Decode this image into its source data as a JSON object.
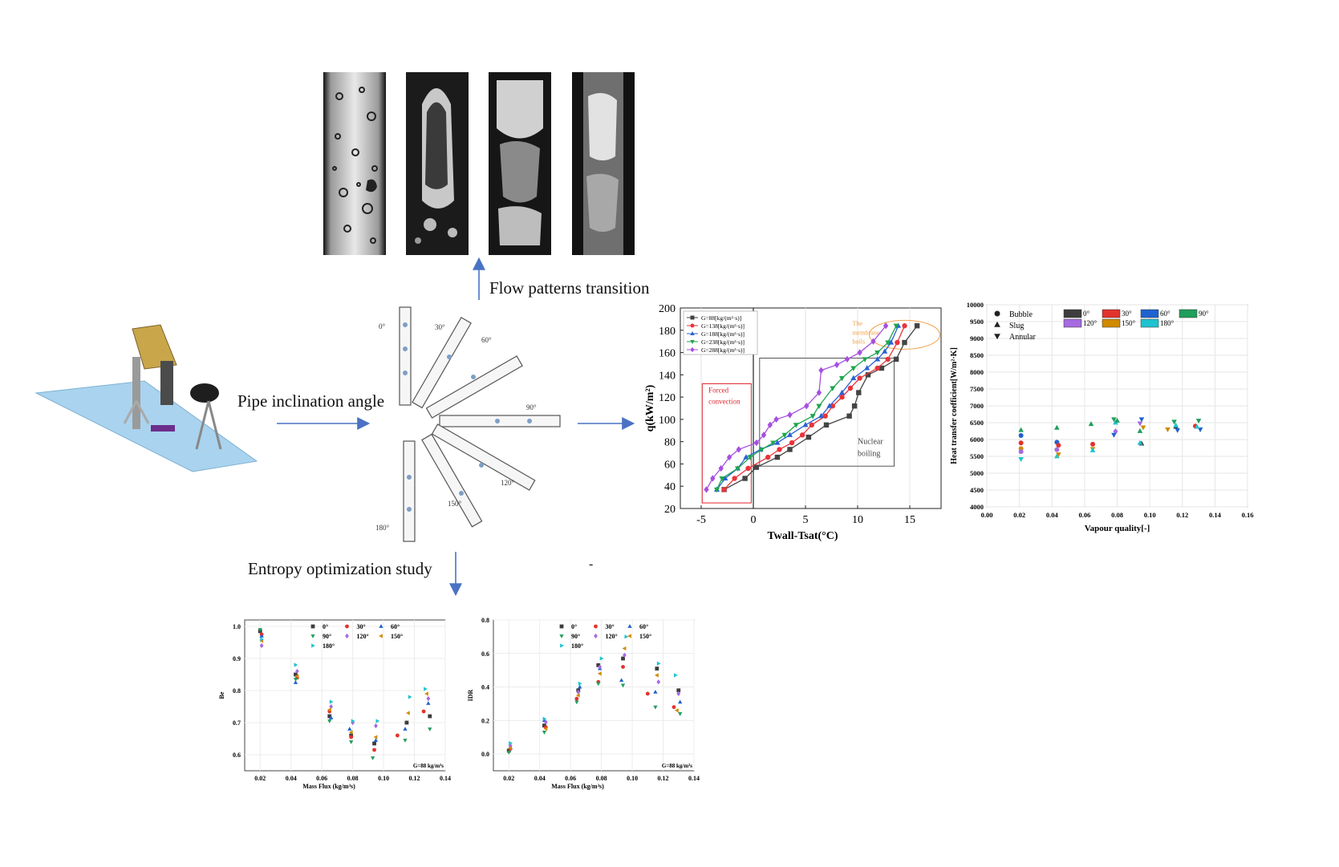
{
  "captions": {
    "flow_patterns": "Flow patterns  transition",
    "pipe_inclination": "Pipe inclination  angle",
    "entropy": "Entropy optimization study",
    "stray_dash": "-"
  },
  "angles": [
    "0°",
    "30°",
    "60°",
    "90°",
    "120°",
    "150°",
    "180°"
  ],
  "colors": {
    "arrow": "#4a72c4",
    "g88": "#444444",
    "g138": "#e8343a",
    "g188": "#2a62d6",
    "g238": "#1fa54f",
    "g288": "#a64fe0",
    "a0": "#3d3d3d",
    "a30": "#e2332c",
    "a60": "#1f62d0",
    "a90": "#1f9e5c",
    "a120": "#a66be0",
    "a150": "#d08a00",
    "a180": "#1fc3cf",
    "forced_box": "#e0242b",
    "membrane": "#f0a04b",
    "nucleate_box": "#555555"
  },
  "boiling_chart": {
    "chart_data": {
      "type": "line",
      "xlabel": "Twall-Tsat(°C)",
      "ylabel": "q(kW/m²)",
      "xlim": [
        -7,
        18
      ],
      "ylim": [
        20,
        200
      ],
      "xticks": [
        -5,
        0,
        5,
        10,
        15
      ],
      "yticks": [
        20,
        40,
        60,
        80,
        100,
        120,
        140,
        160,
        180,
        200
      ],
      "legend_position": "top-left",
      "series": [
        {
          "name": "G=88[kg/(m²·s)]",
          "marker": "square",
          "color": "#444444",
          "x": [
            -2.8,
            -0.8,
            0.3,
            2.3,
            3.5,
            5.3,
            7.0,
            9.2,
            9.7,
            10.1,
            11.0,
            12.3,
            13.7,
            14.5,
            15.7
          ],
          "y": [
            37,
            47,
            57,
            66,
            73,
            84,
            95,
            103,
            112,
            124,
            140,
            146,
            154,
            169,
            184
          ]
        },
        {
          "name": "G=138[kg/(m²·s)]",
          "marker": "circle",
          "color": "#e8343a",
          "x": [
            -2.8,
            -1.8,
            -0.5,
            1.4,
            2.5,
            3.7,
            4.7,
            5.6,
            6.9,
            7.6,
            8.5,
            9.3,
            10.2,
            11.9,
            12.9,
            13.8,
            14.5
          ],
          "y": [
            37,
            47,
            56,
            66,
            73,
            79,
            86,
            95,
            103,
            112,
            120,
            128,
            137,
            146,
            154,
            169,
            184
          ]
        },
        {
          "name": "G=188[kg/(m²·s)]",
          "marker": "triangle-up",
          "color": "#2a62d6",
          "x": [
            -3.5,
            -2.7,
            -1.5,
            -0.7,
            0.7,
            2.3,
            3.5,
            5.0,
            6.5,
            7.3,
            8.5,
            9.6,
            10.9,
            11.9,
            12.6,
            13.2,
            13.9
          ],
          "y": [
            37,
            47,
            56,
            66,
            73,
            79,
            86,
            95,
            103,
            112,
            124,
            137,
            146,
            154,
            161,
            169,
            184
          ]
        },
        {
          "name": "G=238[kg/(m²·s)]",
          "marker": "triangle-down",
          "color": "#1fa54f",
          "x": [
            -3.5,
            -3.0,
            -1.5,
            -0.3,
            0.8,
            1.9,
            3.0,
            4.1,
            5.7,
            6.3,
            7.6,
            8.5,
            9.6,
            10.7,
            11.9,
            12.9,
            13.7
          ],
          "y": [
            37,
            47,
            56,
            66,
            73,
            79,
            86,
            95,
            103,
            112,
            128,
            137,
            146,
            154,
            160,
            169,
            184
          ]
        },
        {
          "name": "G=288[kg/(m²·s)]",
          "marker": "diamond",
          "color": "#a64fe0",
          "x": [
            -4.5,
            -3.9,
            -3.1,
            -2.3,
            -1.4,
            0.3,
            1.0,
            1.6,
            2.2,
            3.5,
            5.1,
            6.3,
            6.5,
            8.0,
            9.0,
            10.2,
            11.5,
            12.7
          ],
          "y": [
            37,
            47,
            56,
            66,
            73,
            79,
            86,
            95,
            100,
            104,
            112,
            124,
            144,
            149,
            154,
            160,
            170,
            184
          ]
        }
      ],
      "annotations": [
        "Forced convection",
        "Nuclear boiling",
        "The membrane boils"
      ]
    },
    "annotations": {
      "forced_1": "Forced",
      "forced_2": "convection",
      "nuclear_1": "Nuclear",
      "nuclear_2": "boiling",
      "membrane_1": "The",
      "membrane_2": "membrane",
      "membrane_3": "boils"
    }
  },
  "htc_chart": {
    "chart_data": {
      "type": "scatter",
      "xlabel": "Vapour quality[-]",
      "ylabel": "Heat transfer coefficient[W/m²·K]",
      "xlim": [
        0.0,
        0.16
      ],
      "ylim": [
        4000,
        10000
      ],
      "xticks": [
        "0.00",
        "0.02",
        "0.04",
        "0.06",
        "0.08",
        "0.10",
        "0.12",
        "0.14",
        "0.16"
      ],
      "yticks": [
        "4000",
        "4500",
        "5000",
        "5500",
        "6000",
        "6500",
        "7000",
        "7500",
        "8000",
        "8500",
        "9000",
        "9500",
        "10000"
      ],
      "marker_legend": [
        "Bubble",
        "Slug",
        "Annular"
      ],
      "color_legend": [
        "0°",
        "30°",
        "60°",
        "90°",
        "120°",
        "150°",
        "180°"
      ],
      "points": [
        {
          "x": 0.021,
          "y": 6120,
          "c": "a60",
          "m": "circle"
        },
        {
          "x": 0.021,
          "y": 5900,
          "c": "a30",
          "m": "circle"
        },
        {
          "x": 0.021,
          "y": 5730,
          "c": "a150",
          "m": "circle"
        },
        {
          "x": 0.021,
          "y": 5640,
          "c": "a120",
          "m": "circle"
        },
        {
          "x": 0.021,
          "y": 6280,
          "c": "a90",
          "m": "tri-up"
        },
        {
          "x": 0.021,
          "y": 5420,
          "c": "a180",
          "m": "tri-down"
        },
        {
          "x": 0.043,
          "y": 5920,
          "c": "a60",
          "m": "circle"
        },
        {
          "x": 0.044,
          "y": 5830,
          "c": "a30",
          "m": "circle"
        },
        {
          "x": 0.043,
          "y": 5700,
          "c": "a120",
          "m": "circle"
        },
        {
          "x": 0.043,
          "y": 6350,
          "c": "a90",
          "m": "tri-up"
        },
        {
          "x": 0.043,
          "y": 5500,
          "c": "a180",
          "m": "tri-up"
        },
        {
          "x": 0.044,
          "y": 5560,
          "c": "a150",
          "m": "tri-down"
        },
        {
          "x": 0.064,
          "y": 6460,
          "c": "a90",
          "m": "tri-up"
        },
        {
          "x": 0.065,
          "y": 5860,
          "c": "a30",
          "m": "circle"
        },
        {
          "x": 0.065,
          "y": 5720,
          "c": "a150",
          "m": "tri-down"
        },
        {
          "x": 0.065,
          "y": 5680,
          "c": "a180",
          "m": "tri-up"
        },
        {
          "x": 0.078,
          "y": 6600,
          "c": "a90",
          "m": "tri-down"
        },
        {
          "x": 0.079,
          "y": 6500,
          "c": "a180",
          "m": "tri-up"
        },
        {
          "x": 0.08,
          "y": 6560,
          "c": "a90",
          "m": "tri-up"
        },
        {
          "x": 0.079,
          "y": 6240,
          "c": "a120",
          "m": "diamond"
        },
        {
          "x": 0.078,
          "y": 6140,
          "c": "a60",
          "m": "tri-down"
        },
        {
          "x": 0.095,
          "y": 6600,
          "c": "a60",
          "m": "tri-down"
        },
        {
          "x": 0.094,
          "y": 6480,
          "c": "a120",
          "m": "tri-down"
        },
        {
          "x": 0.096,
          "y": 6360,
          "c": "a150",
          "m": "tri-down"
        },
        {
          "x": 0.094,
          "y": 6250,
          "c": "a90",
          "m": "tri-up"
        },
        {
          "x": 0.095,
          "y": 5880,
          "c": "a0",
          "m": "tri-up"
        },
        {
          "x": 0.094,
          "y": 5900,
          "c": "a180",
          "m": "tri-up"
        },
        {
          "x": 0.111,
          "y": 6300,
          "c": "a150",
          "m": "tri-down"
        },
        {
          "x": 0.115,
          "y": 6530,
          "c": "a90",
          "m": "tri-down"
        },
        {
          "x": 0.116,
          "y": 6380,
          "c": "a0",
          "m": "tri-up"
        },
        {
          "x": 0.117,
          "y": 6280,
          "c": "a60",
          "m": "tri-down"
        },
        {
          "x": 0.116,
          "y": 6420,
          "c": "a180",
          "m": "tri-up"
        },
        {
          "x": 0.128,
          "y": 6400,
          "c": "a30",
          "m": "circle"
        },
        {
          "x": 0.13,
          "y": 6560,
          "c": "a90",
          "m": "tri-down"
        },
        {
          "x": 0.131,
          "y": 6300,
          "c": "a60",
          "m": "tri-down"
        },
        {
          "x": 0.129,
          "y": 6380,
          "c": "a180",
          "m": "tri-up"
        }
      ]
    }
  },
  "re_chart": {
    "chart_data": {
      "type": "scatter",
      "xlabel": "Mass Flux (kg/m³s)",
      "ylabel": "Be",
      "xlim": [
        0.01,
        0.14
      ],
      "ylim": [
        0.55,
        1.02
      ],
      "xticks": [
        "0.02",
        "0.04",
        "0.06",
        "0.08",
        "0.10",
        "0.12",
        "0.14"
      ],
      "yticks": [
        "0.6",
        "0.7",
        "0.8",
        "0.9",
        "1.0"
      ],
      "legend": [
        "0°",
        "30°",
        "60°",
        "90°",
        "120°",
        "150°",
        "180°"
      ],
      "note": "G=88 kg/m³s",
      "points": [
        {
          "x": 0.02,
          "y": 0.985,
          "c": "a0"
        },
        {
          "x": 0.021,
          "y": 0.975,
          "c": "a30"
        },
        {
          "x": 0.021,
          "y": 0.97,
          "c": "a60"
        },
        {
          "x": 0.02,
          "y": 0.99,
          "c": "a90"
        },
        {
          "x": 0.021,
          "y": 0.94,
          "c": "a120"
        },
        {
          "x": 0.021,
          "y": 0.955,
          "c": "a150"
        },
        {
          "x": 0.021,
          "y": 0.96,
          "c": "a180"
        },
        {
          "x": 0.043,
          "y": 0.85,
          "c": "a0"
        },
        {
          "x": 0.044,
          "y": 0.84,
          "c": "a30"
        },
        {
          "x": 0.043,
          "y": 0.825,
          "c": "a60"
        },
        {
          "x": 0.043,
          "y": 0.835,
          "c": "a90"
        },
        {
          "x": 0.044,
          "y": 0.86,
          "c": "a120"
        },
        {
          "x": 0.044,
          "y": 0.845,
          "c": "a150"
        },
        {
          "x": 0.043,
          "y": 0.88,
          "c": "a180"
        },
        {
          "x": 0.065,
          "y": 0.72,
          "c": "a0"
        },
        {
          "x": 0.065,
          "y": 0.735,
          "c": "a30"
        },
        {
          "x": 0.066,
          "y": 0.715,
          "c": "a60"
        },
        {
          "x": 0.065,
          "y": 0.705,
          "c": "a90"
        },
        {
          "x": 0.066,
          "y": 0.75,
          "c": "a120"
        },
        {
          "x": 0.065,
          "y": 0.74,
          "c": "a150"
        },
        {
          "x": 0.066,
          "y": 0.765,
          "c": "a180"
        },
        {
          "x": 0.079,
          "y": 0.66,
          "c": "a0"
        },
        {
          "x": 0.079,
          "y": 0.655,
          "c": "a30"
        },
        {
          "x": 0.078,
          "y": 0.68,
          "c": "a60"
        },
        {
          "x": 0.079,
          "y": 0.64,
          "c": "a90"
        },
        {
          "x": 0.08,
          "y": 0.7,
          "c": "a120"
        },
        {
          "x": 0.079,
          "y": 0.67,
          "c": "a150"
        },
        {
          "x": 0.08,
          "y": 0.705,
          "c": "a180"
        },
        {
          "x": 0.094,
          "y": 0.635,
          "c": "a0"
        },
        {
          "x": 0.094,
          "y": 0.615,
          "c": "a30"
        },
        {
          "x": 0.095,
          "y": 0.645,
          "c": "a60"
        },
        {
          "x": 0.093,
          "y": 0.59,
          "c": "a90"
        },
        {
          "x": 0.095,
          "y": 0.69,
          "c": "a120"
        },
        {
          "x": 0.095,
          "y": 0.655,
          "c": "a150"
        },
        {
          "x": 0.096,
          "y": 0.705,
          "c": "a180"
        },
        {
          "x": 0.109,
          "y": 0.66,
          "c": "a30"
        },
        {
          "x": 0.115,
          "y": 0.7,
          "c": "a0"
        },
        {
          "x": 0.114,
          "y": 0.68,
          "c": "a60"
        },
        {
          "x": 0.114,
          "y": 0.645,
          "c": "a90"
        },
        {
          "x": 0.116,
          "y": 0.73,
          "c": "a150"
        },
        {
          "x": 0.117,
          "y": 0.78,
          "c": "a180"
        },
        {
          "x": 0.126,
          "y": 0.735,
          "c": "a30"
        },
        {
          "x": 0.13,
          "y": 0.72,
          "c": "a0"
        },
        {
          "x": 0.129,
          "y": 0.76,
          "c": "a60"
        },
        {
          "x": 0.13,
          "y": 0.68,
          "c": "a90"
        },
        {
          "x": 0.129,
          "y": 0.775,
          "c": "a120"
        },
        {
          "x": 0.128,
          "y": 0.79,
          "c": "a150"
        },
        {
          "x": 0.127,
          "y": 0.805,
          "c": "a180"
        }
      ]
    }
  },
  "idr_chart": {
    "chart_data": {
      "type": "scatter",
      "xlabel": "Mass Flux (kg/m³s)",
      "ylabel": "IDR",
      "xlim": [
        0.01,
        0.14
      ],
      "ylim": [
        -0.1,
        0.8
      ],
      "xticks": [
        "0.02",
        "0.04",
        "0.06",
        "0.08",
        "0.10",
        "0.12",
        "0.14"
      ],
      "yticks": [
        "0.0",
        "0.2",
        "0.4",
        "0.6",
        "0.8"
      ],
      "legend": [
        "0°",
        "30°",
        "60°",
        "90°",
        "120°",
        "150°",
        "180°"
      ],
      "note": "G=88 kg/m³s",
      "points": [
        {
          "x": 0.02,
          "y": 0.02,
          "c": "a0"
        },
        {
          "x": 0.021,
          "y": 0.03,
          "c": "a30"
        },
        {
          "x": 0.021,
          "y": 0.04,
          "c": "a60"
        },
        {
          "x": 0.02,
          "y": 0.01,
          "c": "a90"
        },
        {
          "x": 0.021,
          "y": 0.05,
          "c": "a120"
        },
        {
          "x": 0.021,
          "y": 0.035,
          "c": "a150"
        },
        {
          "x": 0.021,
          "y": 0.065,
          "c": "a180"
        },
        {
          "x": 0.043,
          "y": 0.17,
          "c": "a0"
        },
        {
          "x": 0.044,
          "y": 0.16,
          "c": "a30"
        },
        {
          "x": 0.043,
          "y": 0.2,
          "c": "a60"
        },
        {
          "x": 0.043,
          "y": 0.13,
          "c": "a90"
        },
        {
          "x": 0.044,
          "y": 0.19,
          "c": "a120"
        },
        {
          "x": 0.044,
          "y": 0.15,
          "c": "a150"
        },
        {
          "x": 0.043,
          "y": 0.21,
          "c": "a180"
        },
        {
          "x": 0.065,
          "y": 0.38,
          "c": "a0"
        },
        {
          "x": 0.064,
          "y": 0.33,
          "c": "a30"
        },
        {
          "x": 0.066,
          "y": 0.4,
          "c": "a60"
        },
        {
          "x": 0.064,
          "y": 0.31,
          "c": "a90"
        },
        {
          "x": 0.065,
          "y": 0.37,
          "c": "a120"
        },
        {
          "x": 0.065,
          "y": 0.35,
          "c": "a150"
        },
        {
          "x": 0.066,
          "y": 0.42,
          "c": "a180"
        },
        {
          "x": 0.078,
          "y": 0.53,
          "c": "a0"
        },
        {
          "x": 0.078,
          "y": 0.43,
          "c": "a30"
        },
        {
          "x": 0.079,
          "y": 0.51,
          "c": "a60"
        },
        {
          "x": 0.078,
          "y": 0.42,
          "c": "a90"
        },
        {
          "x": 0.079,
          "y": 0.52,
          "c": "a120"
        },
        {
          "x": 0.079,
          "y": 0.48,
          "c": "a150"
        },
        {
          "x": 0.08,
          "y": 0.57,
          "c": "a180"
        },
        {
          "x": 0.094,
          "y": 0.57,
          "c": "a0"
        },
        {
          "x": 0.094,
          "y": 0.52,
          "c": "a30"
        },
        {
          "x": 0.093,
          "y": 0.44,
          "c": "a60"
        },
        {
          "x": 0.094,
          "y": 0.41,
          "c": "a90"
        },
        {
          "x": 0.095,
          "y": 0.59,
          "c": "a120"
        },
        {
          "x": 0.095,
          "y": 0.63,
          "c": "a150"
        },
        {
          "x": 0.096,
          "y": 0.7,
          "c": "a180"
        },
        {
          "x": 0.11,
          "y": 0.36,
          "c": "a30"
        },
        {
          "x": 0.116,
          "y": 0.51,
          "c": "a0"
        },
        {
          "x": 0.115,
          "y": 0.37,
          "c": "a60"
        },
        {
          "x": 0.115,
          "y": 0.28,
          "c": "a90"
        },
        {
          "x": 0.117,
          "y": 0.43,
          "c": "a120"
        },
        {
          "x": 0.116,
          "y": 0.47,
          "c": "a150"
        },
        {
          "x": 0.117,
          "y": 0.54,
          "c": "a180"
        },
        {
          "x": 0.127,
          "y": 0.28,
          "c": "a30"
        },
        {
          "x": 0.13,
          "y": 0.38,
          "c": "a0"
        },
        {
          "x": 0.131,
          "y": 0.31,
          "c": "a60"
        },
        {
          "x": 0.131,
          "y": 0.24,
          "c": "a90"
        },
        {
          "x": 0.13,
          "y": 0.36,
          "c": "a120"
        },
        {
          "x": 0.129,
          "y": 0.26,
          "c": "a150"
        },
        {
          "x": 0.128,
          "y": 0.47,
          "c": "a180"
        }
      ]
    }
  }
}
